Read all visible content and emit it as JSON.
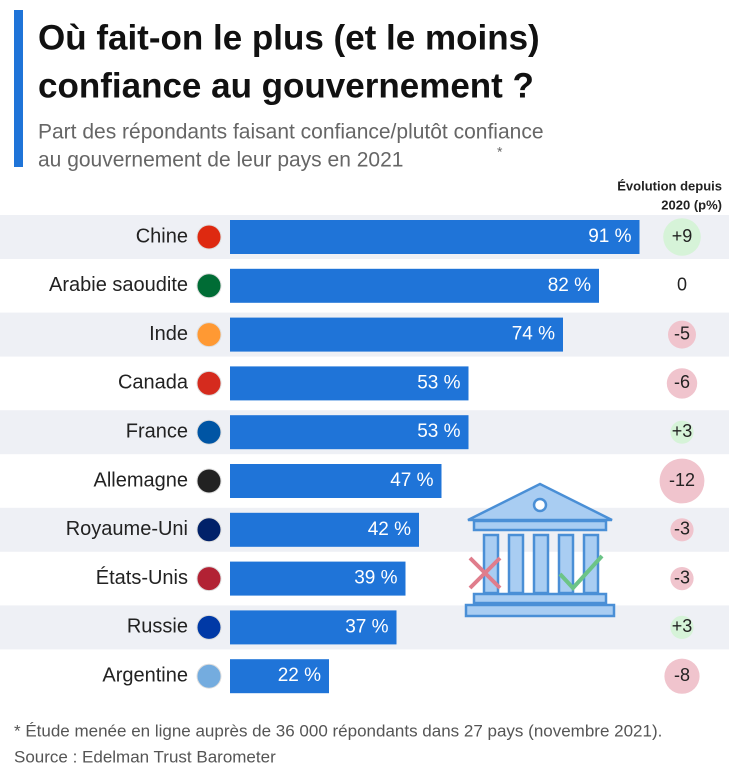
{
  "chart_data": {
    "type": "bar",
    "title": [
      "Où fait-on le plus (et le moins)",
      "confiance au gouvernement ?"
    ],
    "subtitle": [
      "Part des répondants faisant confiance/plutôt confiance",
      "au gouvernement de leur pays en 2021"
    ],
    "subtitle_note": "*",
    "categories": [
      "Chine",
      "Arabie saoudite",
      "Inde",
      "Canada",
      "France",
      "Allemagne",
      "Royaume-Uni",
      "États-Unis",
      "Russie",
      "Argentine"
    ],
    "values": [
      91,
      82,
      74,
      53,
      53,
      47,
      42,
      39,
      37,
      22
    ],
    "value_labels": [
      "91 %",
      "82 %",
      "74 %",
      "53 %",
      "53 %",
      "47 %",
      "42 %",
      "39 %",
      "37 %",
      "22 %"
    ],
    "color": "#1f74d8",
    "change_header": [
      "Évolution depuis",
      "2020 (p%)"
    ],
    "changes": [
      9,
      0,
      -5,
      -6,
      3,
      -12,
      -3,
      -3,
      3,
      -8
    ],
    "change_labels": [
      "+9",
      "0",
      "-5",
      "-6",
      "+3",
      "-12",
      "-3",
      "-3",
      "+3",
      "-8"
    ],
    "change_colors": {
      "positive": "#d6f3d8",
      "negative": "#f0c4cd"
    },
    "footnote": "* Étude menée en ligne auprès de 36 000 répondants dans 27 pays (novembre 2021).",
    "source": "Source : Edelman Trust Barometer"
  }
}
